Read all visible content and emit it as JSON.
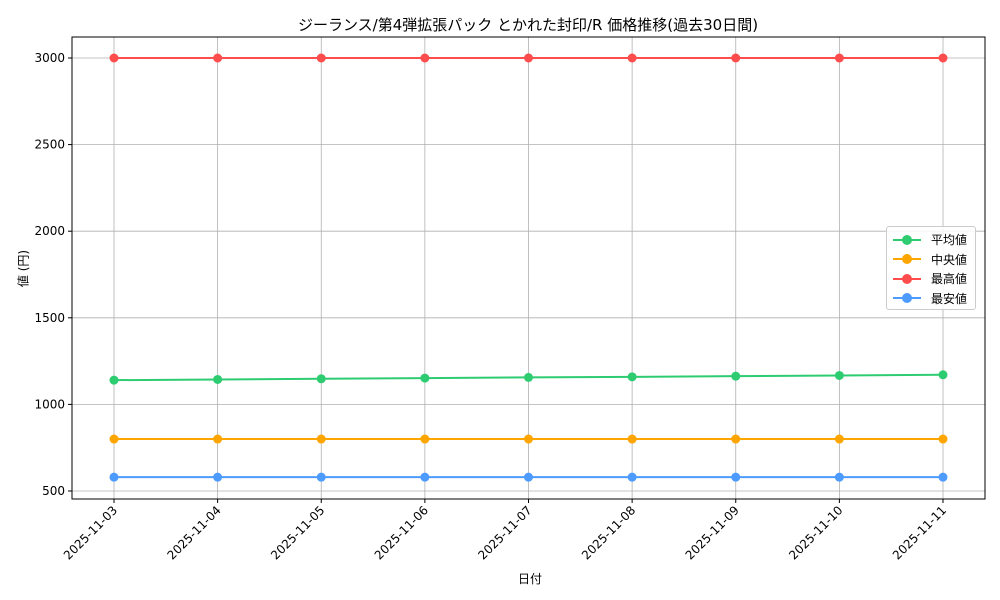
{
  "chart_data": {
    "type": "line",
    "title": "ジーランス/第4弾拡張パック とかれた封印/R 価格推移(過去30日間)",
    "xlabel": "日付",
    "ylabel": "値 (円)",
    "x": [
      "2025-11-03",
      "2025-11-04",
      "2025-11-05",
      "2025-11-06",
      "2025-11-07",
      "2025-11-08",
      "2025-11-09",
      "2025-11-10",
      "2025-11-11"
    ],
    "yticks": [
      500,
      1000,
      1500,
      2000,
      2500,
      3000
    ],
    "ylim": [
      450,
      3120
    ],
    "grid": true,
    "legend_position": "center right",
    "series": [
      {
        "name": "平均値",
        "color": "#2ecc71",
        "values": [
          1140,
          1144,
          1148,
          1152,
          1156,
          1159,
          1163,
          1167,
          1171
        ]
      },
      {
        "name": "中央値",
        "color": "#ffa500",
        "values": [
          800,
          800,
          800,
          800,
          800,
          800,
          800,
          800,
          800
        ]
      },
      {
        "name": "最高値",
        "color": "#ff4d4d",
        "values": [
          3000,
          3000,
          3000,
          3000,
          3000,
          3000,
          3000,
          3000,
          3000
        ]
      },
      {
        "name": "最安値",
        "color": "#4d9bff",
        "values": [
          580,
          580,
          580,
          580,
          580,
          580,
          580,
          580,
          580
        ]
      }
    ]
  }
}
